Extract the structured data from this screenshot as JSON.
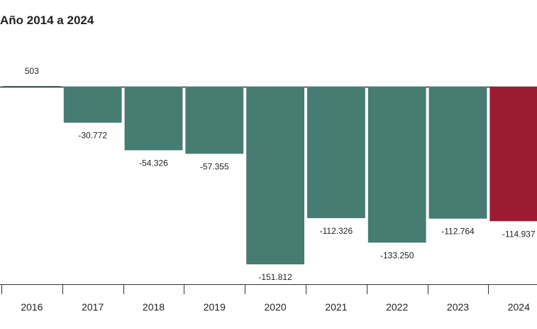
{
  "chart_data": {
    "type": "bar",
    "title": "Año 2014 a 2024",
    "categories": [
      "2016",
      "2017",
      "2018",
      "2019",
      "2020",
      "2021",
      "2022",
      "2023",
      "2024"
    ],
    "values": [
      503,
      -30772,
      -54326,
      -57355,
      -151812,
      -112326,
      -133250,
      -112764,
      -114937
    ],
    "data_labels": [
      "503",
      "-30.772",
      "-54.326",
      "-57.355",
      "-151.812",
      "-112.326",
      "-133.250",
      "-112.764",
      "-114.937"
    ],
    "xlabel": "",
    "ylabel": "",
    "ylim": [
      -155000,
      1000
    ],
    "grid": false,
    "colors": {
      "default": "#477c73",
      "highlight": "#9b1b30",
      "axis": "#333333"
    },
    "highlight_category": "2024"
  }
}
